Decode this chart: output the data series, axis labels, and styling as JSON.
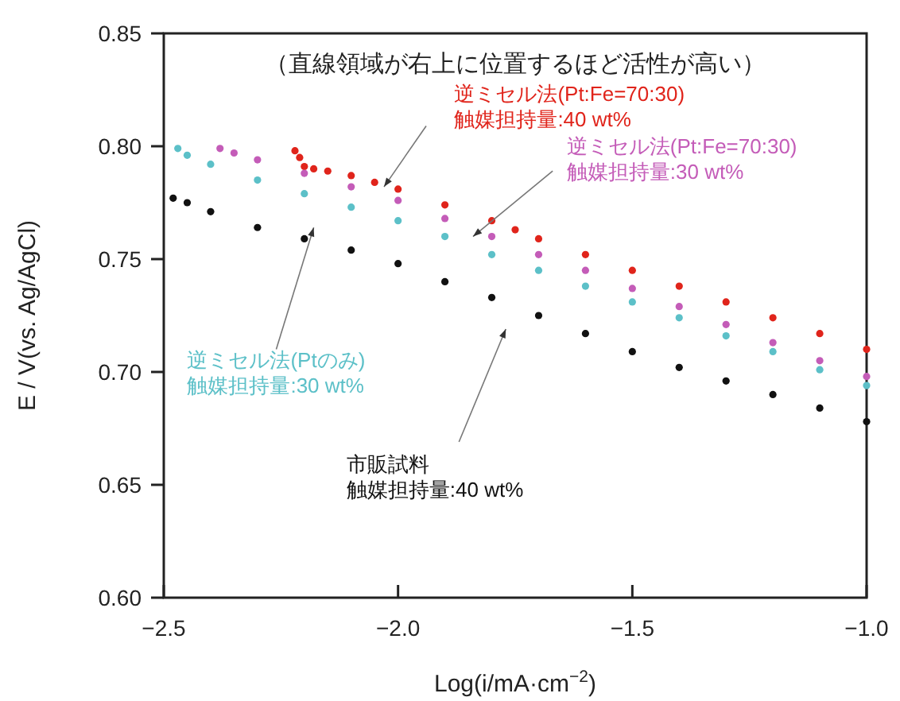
{
  "chart_data": {
    "type": "scatter",
    "xlabel": "Log(i/mA·cm$^{−2}$)",
    "ylabel": "E / V(vs. Ag/AgCl)",
    "annotations": [
      "（直線領域が右上に位置するほど活性が高い）",
      "触媒担持量:40 wt%",
      "触媒担持量:30 wt%",
      "触媒担持量:30 wt%",
      "触媒担持量:40 wt%"
    ],
    "xlim": [
      -2.5,
      -1.0
    ],
    "xticks": [
      {
        "value": -2.5,
        "label": "−2.5"
      },
      {
        "value": -2.0,
        "label": "−2.0"
      },
      {
        "value": -1.5,
        "label": "−1.5"
      },
      {
        "value": -1.0,
        "label": "−1.0"
      }
    ],
    "ylim": [
      0.6,
      0.85
    ],
    "yticks": [
      {
        "value": 0.6,
        "label": "0.60"
      },
      {
        "value": 0.65,
        "label": "0.65"
      },
      {
        "value": 0.7,
        "label": "0.70"
      },
      {
        "value": 0.75,
        "label": "0.75"
      },
      {
        "value": 0.8,
        "label": "0.80"
      },
      {
        "value": 0.85,
        "label": "0.85"
      }
    ],
    "grid": false,
    "legend": false,
    "marker": "circle",
    "series": [
      {
        "name": "逆ミセル法(Pt:Fe=70:30)",
        "color": "#e0241b",
        "x": [
          -2.22,
          -2.21,
          -2.2,
          -2.18,
          -2.15,
          -2.1,
          -2.05,
          -2.0,
          -1.9,
          -1.8,
          -1.75,
          -1.7,
          -1.6,
          -1.5,
          -1.4,
          -1.3,
          -1.2,
          -1.1,
          -1.0
        ],
        "values": [
          0.798,
          0.795,
          0.791,
          0.79,
          0.789,
          0.787,
          0.784,
          0.781,
          0.774,
          0.767,
          0.763,
          0.759,
          0.752,
          0.745,
          0.738,
          0.731,
          0.724,
          0.717,
          0.71
        ]
      },
      {
        "name": "逆ミセル法(Pt:Fe=70:30)",
        "color": "#c45cb8",
        "x": [
          -2.38,
          -2.35,
          -2.3,
          -2.2,
          -2.1,
          -2.0,
          -1.9,
          -1.8,
          -1.7,
          -1.6,
          -1.5,
          -1.4,
          -1.3,
          -1.2,
          -1.1,
          -1.0
        ],
        "values": [
          0.799,
          0.797,
          0.794,
          0.788,
          0.782,
          0.776,
          0.768,
          0.76,
          0.752,
          0.745,
          0.737,
          0.729,
          0.721,
          0.713,
          0.705,
          0.698
        ]
      },
      {
        "name": "逆ミセル法(Ptのみ)",
        "color": "#5cc0c8",
        "x": [
          -2.47,
          -2.45,
          -2.4,
          -2.3,
          -2.2,
          -2.1,
          -2.0,
          -1.9,
          -1.8,
          -1.7,
          -1.6,
          -1.5,
          -1.4,
          -1.3,
          -1.2,
          -1.1,
          -1.0
        ],
        "values": [
          0.799,
          0.796,
          0.792,
          0.785,
          0.779,
          0.773,
          0.767,
          0.76,
          0.752,
          0.745,
          0.738,
          0.731,
          0.724,
          0.716,
          0.709,
          0.701,
          0.694
        ]
      },
      {
        "name": "市販試料",
        "color": "#111111",
        "x": [
          -2.48,
          -2.45,
          -2.4,
          -2.3,
          -2.2,
          -2.1,
          -2.0,
          -1.9,
          -1.8,
          -1.7,
          -1.6,
          -1.5,
          -1.4,
          -1.3,
          -1.2,
          -1.1,
          -1.0
        ],
        "values": [
          0.777,
          0.775,
          0.771,
          0.764,
          0.759,
          0.754,
          0.748,
          0.74,
          0.733,
          0.725,
          0.717,
          0.709,
          0.702,
          0.696,
          0.69,
          0.684,
          0.678
        ]
      }
    ]
  }
}
